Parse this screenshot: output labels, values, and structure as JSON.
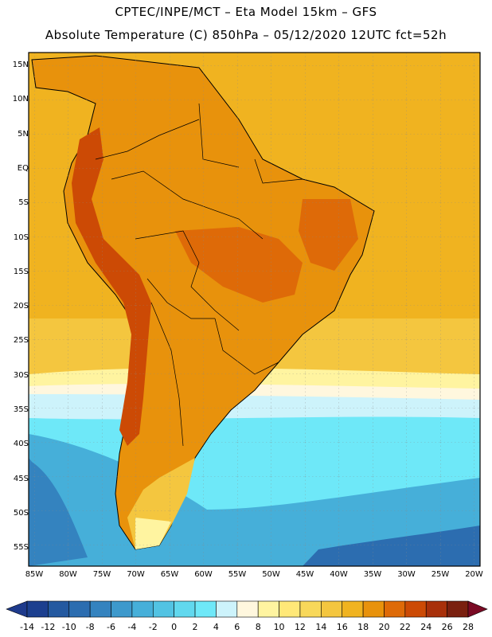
{
  "title_line1": "CPTEC/INPE/MCT –  Eta Model 15km – GFS",
  "title_line2": "Absolute Temperature (C) 850hPa – 05/12/2020 12UTC fct=52h",
  "lat_labels": [
    "15N",
    "10N",
    "5N",
    "EQ",
    "5S",
    "10S",
    "15S",
    "20S",
    "25S",
    "30S",
    "35S",
    "40S",
    "45S",
    "50S",
    "55S"
  ],
  "lon_labels": [
    "85W",
    "80W",
    "75W",
    "70W",
    "65W",
    "60W",
    "55W",
    "50W",
    "45W",
    "40W",
    "35W",
    "30W",
    "25W",
    "20W"
  ],
  "colorbar": {
    "labels": [
      "-14",
      "-12",
      "-10",
      "-8",
      "-6",
      "-4",
      "-2",
      "0",
      "2",
      "4",
      "6",
      "8",
      "10",
      "12",
      "14",
      "16",
      "18",
      "20",
      "22",
      "24",
      "26",
      "28"
    ],
    "colors": [
      "#1c3f8f",
      "#2459a0",
      "#2c6db0",
      "#3483bf",
      "#3d99cc",
      "#46afd9",
      "#52c3e3",
      "#61d8ee",
      "#6ee8f8",
      "#cdf3fb",
      "#fff7de",
      "#fff4a0",
      "#ffe878",
      "#f8d85a",
      "#f4c63f",
      "#f0b320",
      "#e8920c",
      "#de6a08",
      "#cc4a05",
      "#a8300a",
      "#7a200f"
    ],
    "under_color": "#1e3a8c",
    "over_color": "#7a0a24"
  },
  "palette": {
    "ocean_warm": "#f0b320",
    "ocean_mid": "#f4c63f",
    "land_warm": "#e8920c",
    "land_hot": "#de6a08",
    "andes_hot": "#cc4a05",
    "cool_band": "#fff4a0",
    "pale": "#fff7de",
    "cyan_light": "#cdf3fb",
    "cyan": "#6ee8f8",
    "blue_mid": "#46afd9",
    "blue_deep": "#2c6db0"
  }
}
